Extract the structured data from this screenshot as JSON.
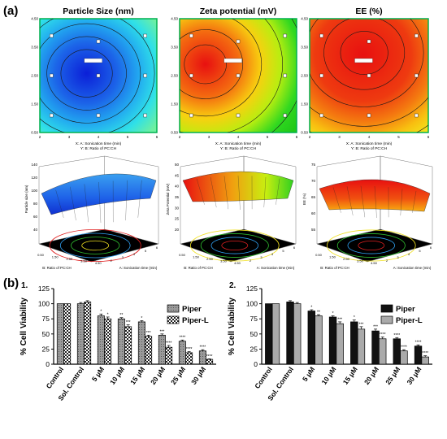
{
  "panel_a_label": "(a)",
  "panel_b_label": "(b)",
  "contour_x_axis_label": "X: A: Sonication time (min)",
  "contour_y_axis_label": "Y: B: Ratio of PC:CH",
  "surface_depth_axis_label": "B: Ratio of PC:CH",
  "surface_width_axis_label": "A: Sonication time (min)",
  "chart_data": [
    {
      "type": "heatmap",
      "title": "Particle Size (nm)",
      "xlabel": "X: A: Sonication time (min)",
      "ylabel": "Y: B: Ratio of PC:CH",
      "x_ticks": [
        "2",
        "3",
        "4",
        "5",
        "6"
      ],
      "y_ticks": [
        "0.50",
        "1.50",
        "2.50",
        "3.50",
        "4.50"
      ],
      "xlim": [
        2,
        6
      ],
      "ylim": [
        0.5,
        4.5
      ],
      "colormap": [
        "#0b1fd8",
        "#1c63e8",
        "#22aaf0",
        "#2fe0e8",
        "#6ef0a0"
      ]
    },
    {
      "type": "heatmap",
      "title": "Zeta potential (mV)",
      "xlabel": "X: A: Sonication time (min)",
      "ylabel": "Y: B: Ratio of PC:CH",
      "x_ticks": [
        "2",
        "3",
        "4",
        "5",
        "6"
      ],
      "y_ticks": [
        "0.50",
        "1.50",
        "2.50",
        "3.50",
        "4.50"
      ],
      "xlim": [
        2,
        6
      ],
      "ylim": [
        0.5,
        4.5
      ],
      "colormap": [
        "#e81010",
        "#f46a10",
        "#f8d010",
        "#b8ee10",
        "#30d820"
      ]
    },
    {
      "type": "heatmap",
      "title": "EE (%)",
      "xlabel": "X: A: Sonication time (min)",
      "ylabel": "Y: B: Ratio of PC:CH",
      "x_ticks": [
        "2",
        "3",
        "4",
        "5",
        "6"
      ],
      "y_ticks": [
        "0.50",
        "1.50",
        "2.50",
        "3.50",
        "4.50"
      ],
      "xlim": [
        2,
        6
      ],
      "ylim": [
        0.5,
        4.5
      ],
      "colormap": [
        "#e81010",
        "#ee3a10",
        "#f47a10",
        "#f8c010",
        "#f0f020"
      ]
    },
    {
      "type": "area",
      "zlabel": "Particle size (nm)",
      "z_ticks": [
        "40",
        "60",
        "80",
        "100",
        "120",
        "140"
      ],
      "zlim": [
        40,
        140
      ],
      "x_ticks": [
        "2",
        "3",
        "4",
        "5",
        "6"
      ],
      "y_ticks": [
        "0.50",
        "1.50",
        "2.50",
        "3.50",
        "4.50"
      ],
      "xlabel": "A: Sonication time (min)",
      "ylabel": "B: Ratio of PC:CH"
    },
    {
      "type": "area",
      "zlabel": "Zeta Potential (mV)",
      "z_ticks": [
        "20",
        "25",
        "30",
        "35",
        "40",
        "45",
        "50"
      ],
      "zlim": [
        20,
        50
      ],
      "x_ticks": [
        "2",
        "3",
        "4",
        "5",
        "6"
      ],
      "y_ticks": [
        "0.50",
        "1.50",
        "2.50",
        "3.50",
        "4.50"
      ],
      "xlabel": "A: Sonication time (min)",
      "ylabel": "B: Ratio of PC:CH"
    },
    {
      "type": "area",
      "zlabel": "EE (%)",
      "z_ticks": [
        "55",
        "60",
        "65",
        "70",
        "75"
      ],
      "zlim": [
        55,
        75
      ],
      "x_ticks": [
        "2",
        "3",
        "4",
        "5",
        "6"
      ],
      "y_ticks": [
        "0.50",
        "1.50",
        "2.50",
        "3.50",
        "4.50"
      ],
      "xlabel": "A: Sonication time (min)",
      "ylabel": "B: Ratio of PC:CH"
    },
    {
      "type": "bar",
      "title": "1.",
      "ylabel": "% Cell Viability",
      "ylim": [
        0,
        125
      ],
      "y_ticks": [
        "0",
        "25",
        "50",
        "75",
        "100",
        "125"
      ],
      "categories": [
        "Control",
        "Sol. Control",
        "5 μM",
        "10 μM",
        "15 μM",
        "20 μM",
        "25 μM",
        "30 μM"
      ],
      "series": [
        {
          "name": "Piper",
          "values": [
            100,
            100,
            80,
            75,
            70,
            48,
            38,
            22
          ],
          "errors": [
            0,
            2,
            3,
            2,
            2,
            2,
            2,
            2
          ],
          "color": "#b0b0b0"
        },
        {
          "name": "Piper-L",
          "values": [
            100,
            103,
            75,
            62,
            46,
            28,
            19,
            8
          ],
          "errors": [
            0,
            2,
            3,
            3,
            2,
            3,
            2,
            1
          ],
          "color": "#ffffff"
        }
      ],
      "annotations": {
        "Piper": [
          "",
          "",
          "*",
          "**",
          "*",
          "***",
          "****",
          "****"
        ],
        "Piper-L": [
          "",
          "",
          "*",
          "***",
          "***",
          "****",
          "****",
          "****"
        ]
      },
      "legend_position": "top-right"
    },
    {
      "type": "bar",
      "title": "2.",
      "ylabel": "% Cell Viability",
      "ylim": [
        0,
        125
      ],
      "y_ticks": [
        "0",
        "25",
        "50",
        "75",
        "100",
        "125"
      ],
      "categories": [
        "Control",
        "Sol. Control",
        "5 μM",
        "10 μM",
        "15 μM",
        "20 μM",
        "25 μM",
        "30 μM"
      ],
      "series": [
        {
          "name": "Piper",
          "values": [
            100,
            103,
            88,
            78,
            70,
            55,
            42,
            30
          ],
          "errors": [
            0,
            2,
            2,
            2,
            3,
            3,
            2,
            2
          ],
          "color": "#111111"
        },
        {
          "name": "Piper-L",
          "values": [
            100,
            100,
            80,
            67,
            58,
            42,
            22,
            12
          ],
          "errors": [
            0,
            2,
            2,
            3,
            4,
            3,
            2,
            2
          ],
          "color": "#aaaaaa"
        }
      ],
      "annotations": {
        "Piper": [
          "",
          "",
          "*",
          "*",
          "*",
          "***",
          "****",
          "****"
        ],
        "Piper-L": [
          "",
          "",
          "**",
          "***",
          "***",
          "****",
          "****",
          "****"
        ]
      },
      "legend_position": "top-right"
    }
  ]
}
